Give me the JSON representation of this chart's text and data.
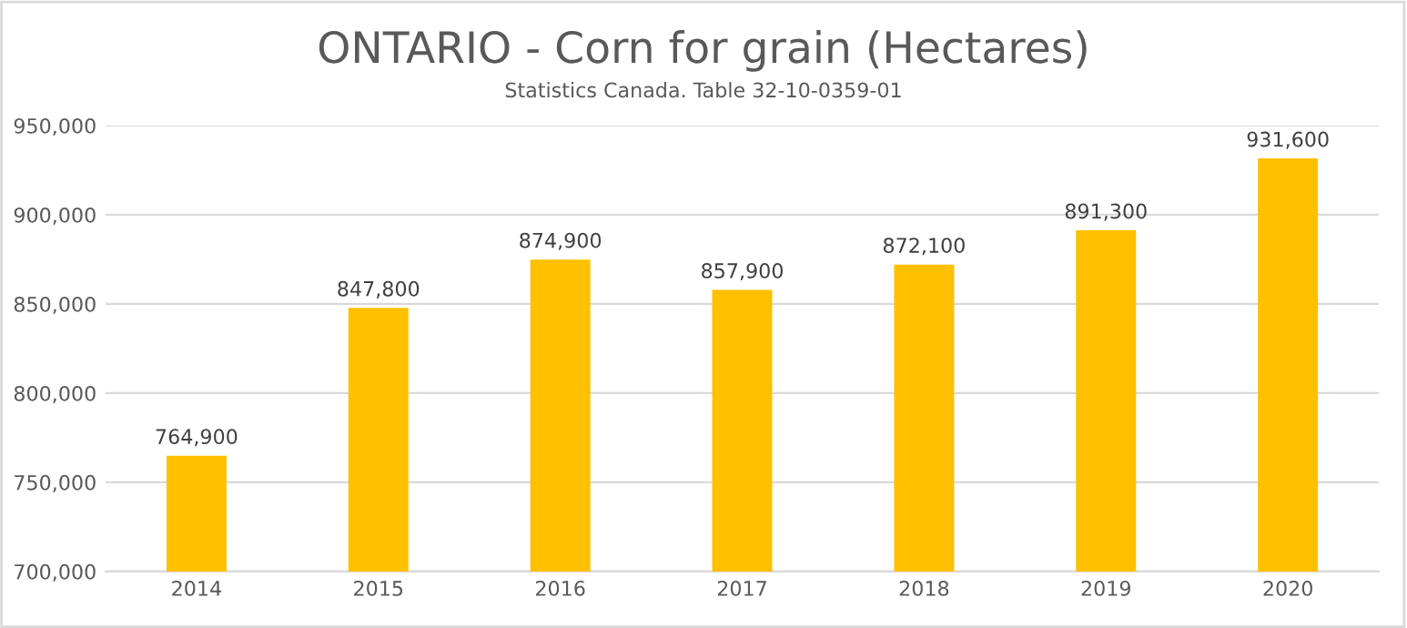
{
  "chart_data": {
    "type": "bar",
    "title": "ONTARIO - Corn for grain (Hectares)",
    "subtitle": "Statistics Canada. Table 32-10-0359-01",
    "categories": [
      "2014",
      "2015",
      "2016",
      "2017",
      "2018",
      "2019",
      "2020"
    ],
    "values": [
      764900,
      847800,
      874900,
      857900,
      872100,
      891300,
      931600
    ],
    "color": "#ffc000",
    "ylim": [
      700000,
      950000
    ],
    "yticks": [
      {
        "value": 700000,
        "label": "700,000"
      },
      {
        "value": 750000,
        "label": "750,000"
      },
      {
        "value": 800000,
        "label": "800,000"
      },
      {
        "value": 850000,
        "label": "850,000"
      },
      {
        "value": 900000,
        "label": "900,000"
      },
      {
        "value": 950000,
        "label": "950,000"
      }
    ],
    "value_labels": [
      "764,900",
      "847,800",
      "874,900",
      "857,900",
      "872,100",
      "891,300",
      "931,600"
    ],
    "grid": "y",
    "legend": false
  }
}
